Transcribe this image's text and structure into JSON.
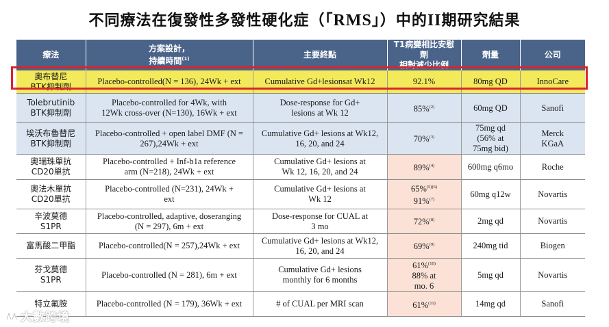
{
  "title": {
    "prefix": "不同療法在復發性多發性硬化症（「",
    "acronym": "RMS",
    "suffix": "」）中的",
    "phase": "II",
    "end": "期研究結果"
  },
  "headers": {
    "therapy": "療法",
    "design_line1": "方案設計，",
    "design_line2": "持續時間",
    "design_note": "(1)",
    "endpoint": "主要終點",
    "reduction_line1": "T1病變相比安慰劑",
    "reduction_line2": "相對減少比例",
    "dose": "劑量",
    "company": "公司"
  },
  "rows": [
    {
      "therapy_line1": "奧布替尼",
      "therapy_line2": "BTK抑制劑",
      "design_line1": "Placebo-controlled(N = 136), 24Wk + ext",
      "design_line2": "",
      "endpoint_line1": "Cumulative Gd+lesionsat Wk12",
      "endpoint_line2": "",
      "reduction_line1": "92.1%",
      "reduction_note1": "",
      "reduction_line2": "",
      "reduction_note2": "",
      "reduction_line3": "",
      "dose_line1": "80mg QD",
      "dose_line2": "",
      "dose_line3": "",
      "company_line1": "InnoCare",
      "company_line2": ""
    },
    {
      "therapy_line1": "Tolebrutinib",
      "therapy_line2": "BTK抑制劑",
      "design_line1": "Placebo-controlled for 4Wk, with",
      "design_line2": "12Wk cross-over (N=130), 16Wk + ext",
      "endpoint_line1": "Dose-response for Gd+",
      "endpoint_line2": "lesions at Wk 12",
      "reduction_line1": "85%",
      "reduction_note1": "(2)",
      "reduction_line2": "",
      "reduction_note2": "",
      "reduction_line3": "",
      "dose_line1": "60mg QD",
      "dose_line2": "",
      "dose_line3": "",
      "company_line1": "Sanofi",
      "company_line2": ""
    },
    {
      "therapy_line1": "埃沃布魯替尼",
      "therapy_line2": "BTK抑制劑",
      "design_line1": "Placebo-controlled + open label DMF (N =",
      "design_line2": "267),24Wk + ext",
      "endpoint_line1": "Cumulative Gd+ lesions at Wk12,",
      "endpoint_line2": "16, 20, and 24",
      "reduction_line1": "70%",
      "reduction_note1": "(3)",
      "reduction_line2": "",
      "reduction_note2": "",
      "reduction_line3": "",
      "dose_line1": "75mg qd",
      "dose_line2": "(56% at",
      "dose_line3": "75mg bid)",
      "company_line1": "Merck",
      "company_line2": "KGaA"
    },
    {
      "therapy_line1": "奧瑞珠單抗",
      "therapy_line2": "CD20單抗",
      "design_line1": "Placebo-controlled + Inf-b1a reference",
      "design_line2": "arm (N=218), 24Wk + ext",
      "endpoint_line1": "Cumulative Gd+ lesions at",
      "endpoint_line2": "Wk 12, 16, 20, and 24",
      "reduction_line1": "89%",
      "reduction_note1": "(4)",
      "reduction_line2": "",
      "reduction_note2": "",
      "reduction_line3": "",
      "dose_line1": "600mg q6mo",
      "dose_line2": "",
      "dose_line3": "",
      "company_line1": "Roche",
      "company_line2": ""
    },
    {
      "therapy_line1": "奧法木單抗",
      "therapy_line2": "CD20單抗",
      "design_line1": "Placebo-controlled (N=231), 24Wk +",
      "design_line2": "ext",
      "endpoint_line1": "Cumulative Gd+ lesions at",
      "endpoint_line2": "Wk 12",
      "reduction_line1": "65%",
      "reduction_note1": "(5)(6)",
      "reduction_line2": "91%",
      "reduction_note2": "(7)",
      "reduction_line3": "",
      "dose_line1": "60mg q12w",
      "dose_line2": "",
      "dose_line3": "",
      "company_line1": "Novartis",
      "company_line2": ""
    },
    {
      "therapy_line1": "辛波莫德",
      "therapy_line2": "S1PR",
      "design_line1": "Placebo-controlled, adaptive, doseranging",
      "design_line2": "(N = 297), 6m + ext",
      "endpoint_line1": "Dose-response for CUAL at",
      "endpoint_line2": "3 mo",
      "reduction_line1": "72%",
      "reduction_note1": "(8)",
      "reduction_line2": "",
      "reduction_note2": "",
      "reduction_line3": "",
      "dose_line1": "2mg qd",
      "dose_line2": "",
      "dose_line3": "",
      "company_line1": "Novartis",
      "company_line2": ""
    },
    {
      "therapy_line1": "富馬酸二甲酯",
      "therapy_line2": "",
      "design_line1": "Placebo-controlled(N = 257),24Wk + ext",
      "design_line2": "",
      "endpoint_line1": "Cumulative Gd+ lesions at Wk12,",
      "endpoint_line2": "16, 20, and 24",
      "reduction_line1": "69%",
      "reduction_note1": "(9)",
      "reduction_line2": "",
      "reduction_note2": "",
      "reduction_line3": "",
      "dose_line1": "240mg tid",
      "dose_line2": "",
      "dose_line3": "",
      "company_line1": "Biogen",
      "company_line2": ""
    },
    {
      "therapy_line1": "芬戈莫德",
      "therapy_line2": "S1PR",
      "design_line1": "Placebo-controlled (N = 281), 6m + ext",
      "design_line2": "",
      "endpoint_line1": "Cumulative Gd+ lesions",
      "endpoint_line2": "monthly for 6 months",
      "reduction_line1": "61%",
      "reduction_note1": "(10)",
      "reduction_line2": "88% at",
      "reduction_note2": "",
      "reduction_line3": "mo. 6",
      "dose_line1": "5mg qd",
      "dose_line2": "",
      "dose_line3": "",
      "company_line1": "Novartis",
      "company_line2": ""
    },
    {
      "therapy_line1": "特立氟胺",
      "therapy_line2": "",
      "design_line1": "Placebo-controlled (N = 179), 36Wk + ext",
      "design_line2": "",
      "endpoint_line1": "# of CUAL per MRI scan",
      "endpoint_line2": "",
      "reduction_line1": "61%",
      "reduction_note1": "(11)",
      "reduction_line2": "",
      "reduction_note2": "",
      "reduction_line3": "",
      "dose_line1": "14mg qd",
      "dose_line2": "",
      "dose_line3": "",
      "company_line1": "Sanofi",
      "company_line2": ""
    }
  ],
  "watermark": {
    "text": "大數跨境"
  }
}
